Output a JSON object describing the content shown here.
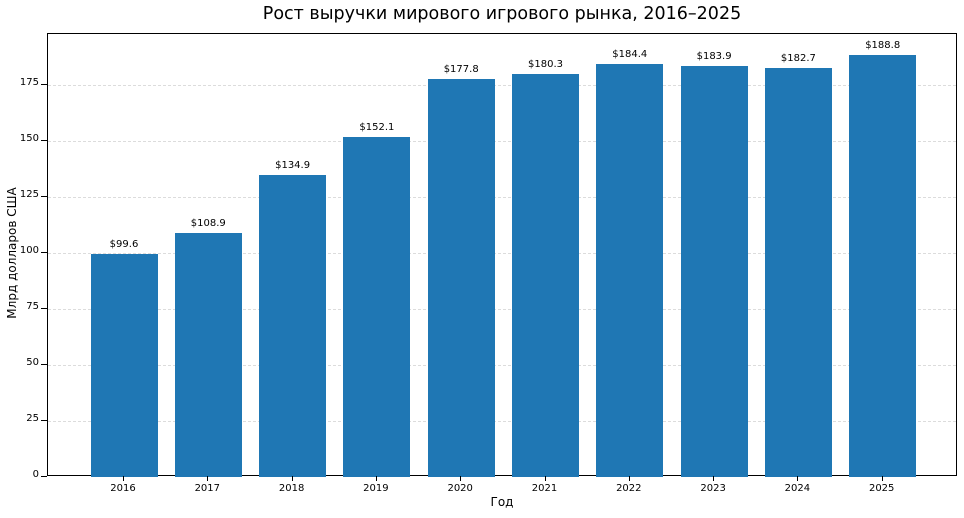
{
  "chart_data": {
    "type": "bar",
    "title": "Рост выручки мирового игрового рынка, 2016–2025",
    "xlabel": "Год",
    "ylabel": "Млрд долларов США",
    "categories": [
      "2016",
      "2017",
      "2018",
      "2019",
      "2020",
      "2021",
      "2022",
      "2023",
      "2024",
      "2025"
    ],
    "values": [
      99.6,
      108.9,
      134.9,
      152.1,
      177.8,
      180.3,
      184.4,
      183.9,
      182.7,
      188.8
    ],
    "value_labels": [
      "$99.6",
      "$108.9",
      "$134.9",
      "$152.1",
      "$177.8",
      "$180.3",
      "$184.4",
      "$183.9",
      "$182.7",
      "$188.8"
    ],
    "yticks": [
      0,
      25,
      50,
      75,
      100,
      125,
      150,
      175
    ],
    "ylim": [
      0,
      198
    ],
    "grid": {
      "axis": "y",
      "style": "dashed"
    },
    "legend": null,
    "bar_color": "#1f77b4"
  }
}
